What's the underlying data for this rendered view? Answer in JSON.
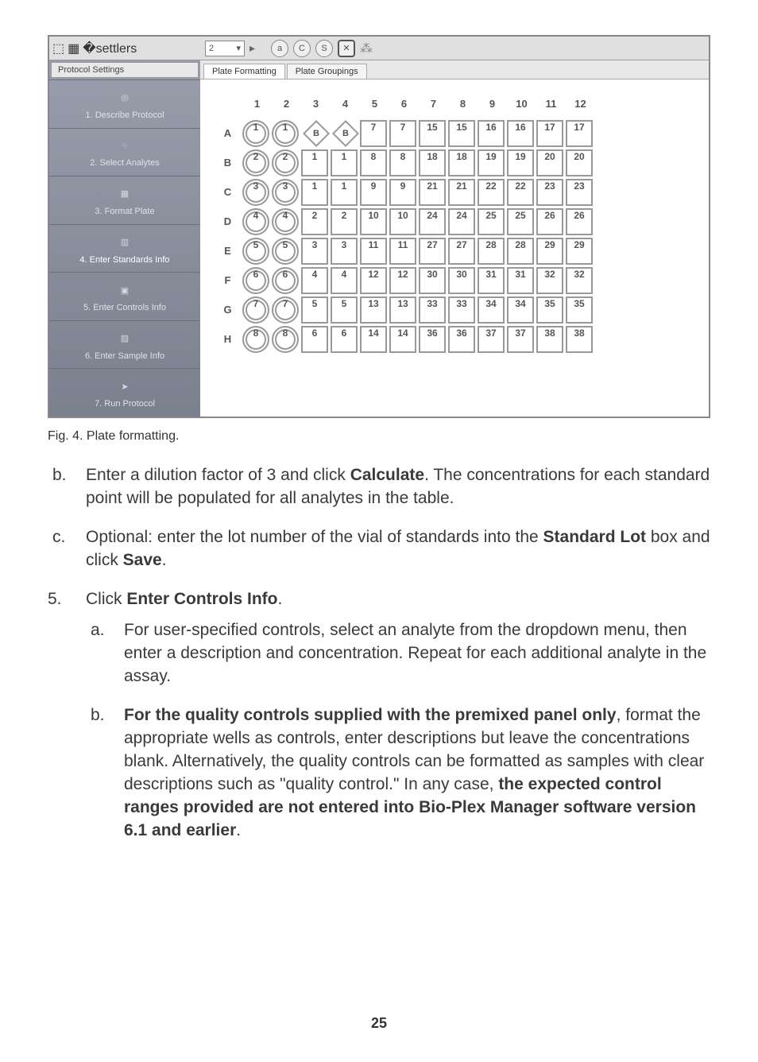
{
  "screenshot": {
    "toolbar": {
      "zoom_value": "2",
      "icons": [
        "arrow-icon",
        "doc-icon",
        "filter-icon"
      ],
      "circle_buttons": [
        "a",
        "C",
        "S"
      ],
      "end_icons": [
        "x-box-icon",
        "wand-icon"
      ]
    },
    "sidebar_tab": "Protocol Settings",
    "steps": [
      {
        "label": "1. Describe Protocol",
        "icon": "globe-icon"
      },
      {
        "label": "2. Select Analytes",
        "icon": "dots-icon"
      },
      {
        "label": "3. Format Plate",
        "icon": "plate-icon"
      },
      {
        "label": "4. Enter Standards Info",
        "icon": "std-icon"
      },
      {
        "label": "5. Enter Controls Info",
        "icon": "ctrl-icon"
      },
      {
        "label": "6. Enter Sample Info",
        "icon": "sample-icon"
      },
      {
        "label": "7. Run Protocol",
        "icon": "run-icon"
      }
    ],
    "tabs": [
      {
        "label": "Plate Formatting",
        "active": true
      },
      {
        "label": "Plate Groupings",
        "active": false
      }
    ],
    "plate": {
      "cols": [
        "1",
        "2",
        "3",
        "4",
        "5",
        "6",
        "7",
        "8",
        "9",
        "10",
        "11",
        "12"
      ],
      "rows": [
        "A",
        "B",
        "C",
        "D",
        "E",
        "F",
        "G",
        "H"
      ],
      "circle_pairs": {
        "A": "1",
        "B": "2",
        "C": "3",
        "D": "4",
        "E": "5",
        "F": "6",
        "G": "7",
        "H": "8"
      },
      "diamond_col3": {
        "A": "B"
      },
      "diamond_col4": {
        "A": "B"
      },
      "col3_square": {
        "B": "1",
        "C": "1",
        "D": "2",
        "E": "3",
        "F": "4",
        "G": "5",
        "H": "6"
      },
      "col4_square": {
        "B": "1",
        "C": "1",
        "D": "2",
        "E": "3",
        "F": "4",
        "G": "5",
        "H": "6"
      },
      "grid_start": {
        "A": [
          "7",
          "7",
          "15",
          "15",
          "16",
          "16",
          "17",
          "17"
        ],
        "B": [
          "8",
          "8",
          "18",
          "18",
          "19",
          "19",
          "20",
          "20"
        ],
        "C": [
          "9",
          "9",
          "21",
          "21",
          "22",
          "22",
          "23",
          "23"
        ],
        "D": [
          "10",
          "10",
          "24",
          "24",
          "25",
          "25",
          "26",
          "26"
        ],
        "E": [
          "11",
          "11",
          "27",
          "27",
          "28",
          "28",
          "29",
          "29"
        ],
        "F": [
          "12",
          "12",
          "30",
          "30",
          "31",
          "31",
          "32",
          "32"
        ],
        "G": [
          "13",
          "13",
          "33",
          "33",
          "34",
          "34",
          "35",
          "35"
        ],
        "H": [
          "14",
          "14",
          "36",
          "36",
          "37",
          "37",
          "38",
          "38"
        ]
      }
    }
  },
  "caption": "Fig. 4. Plate formatting.",
  "list_b_pre": "Enter a dilution factor of 3 and click ",
  "list_b_bold": "Calculate",
  "list_b_post": ". The concentrations for each standard point will be populated for all analytes in the table.",
  "list_c_pre": "Optional: enter the lot number of the vial of standards into the ",
  "list_c_bold1": "Standard Lot",
  "list_c_mid": " box and click ",
  "list_c_bold2": "Save",
  "list_c_post": ".",
  "step5_pre": "Click ",
  "step5_bold": "Enter Controls Info",
  "step5_post": ".",
  "sub_a": "For user-specified controls, select an analyte from the dropdown menu, then enter a description and concentration. Repeat for each additional analyte in the assay.",
  "sub_b_bold1": "For the quality controls supplied with the premixed panel only",
  "sub_b_mid1": ", format the appropriate wells as controls, enter descriptions but leave the concentrations blank. Alternatively, the quality controls can be formatted as samples with clear descriptions such as \"quality control.\" In any case, ",
  "sub_b_bold2": "the expected control ranges provided are not entered into Bio-Plex Manager software version 6.1 and earlier",
  "sub_b_post": ".",
  "page_number": "25",
  "markers": {
    "b": "b.",
    "c": "c.",
    "five": "5.",
    "a": "a.",
    "b2": "b."
  }
}
